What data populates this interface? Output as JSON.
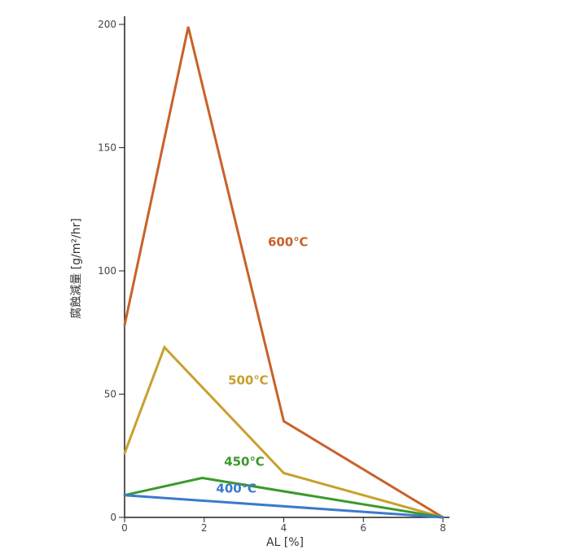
{
  "chart_data": {
    "type": "line",
    "xlabel": "AL [%]",
    "ylabel": "腐蝕減量 [g/m²/hr]",
    "xlim": [
      0,
      8
    ],
    "ylim": [
      0,
      200
    ],
    "xticks": [
      0,
      2,
      4,
      6,
      8
    ],
    "yticks": [
      0,
      50,
      100,
      150,
      200
    ],
    "grid": false,
    "legend": "inline labels",
    "series": [
      {
        "name": "600℃",
        "color": "#c8622a",
        "x": [
          0,
          1.6,
          4,
          8
        ],
        "y": [
          78,
          199,
          39,
          0
        ]
      },
      {
        "name": "500℃",
        "color": "#c9a02c",
        "x": [
          0,
          1.0,
          4,
          8
        ],
        "y": [
          26,
          69,
          18,
          0
        ]
      },
      {
        "name": "450℃",
        "color": "#3a9a2a",
        "x": [
          0,
          1.95,
          8
        ],
        "y": [
          9,
          16,
          0
        ]
      },
      {
        "name": "400℃",
        "color": "#3a7acc",
        "x": [
          0,
          8
        ],
        "y": [
          9,
          0
        ]
      }
    ],
    "label_anchor": [
      {
        "x": 3.6,
        "y": 110
      },
      {
        "x": 2.6,
        "y": 54
      },
      {
        "x": 2.5,
        "y": 21
      },
      {
        "x": 2.3,
        "y": 10
      }
    ]
  }
}
